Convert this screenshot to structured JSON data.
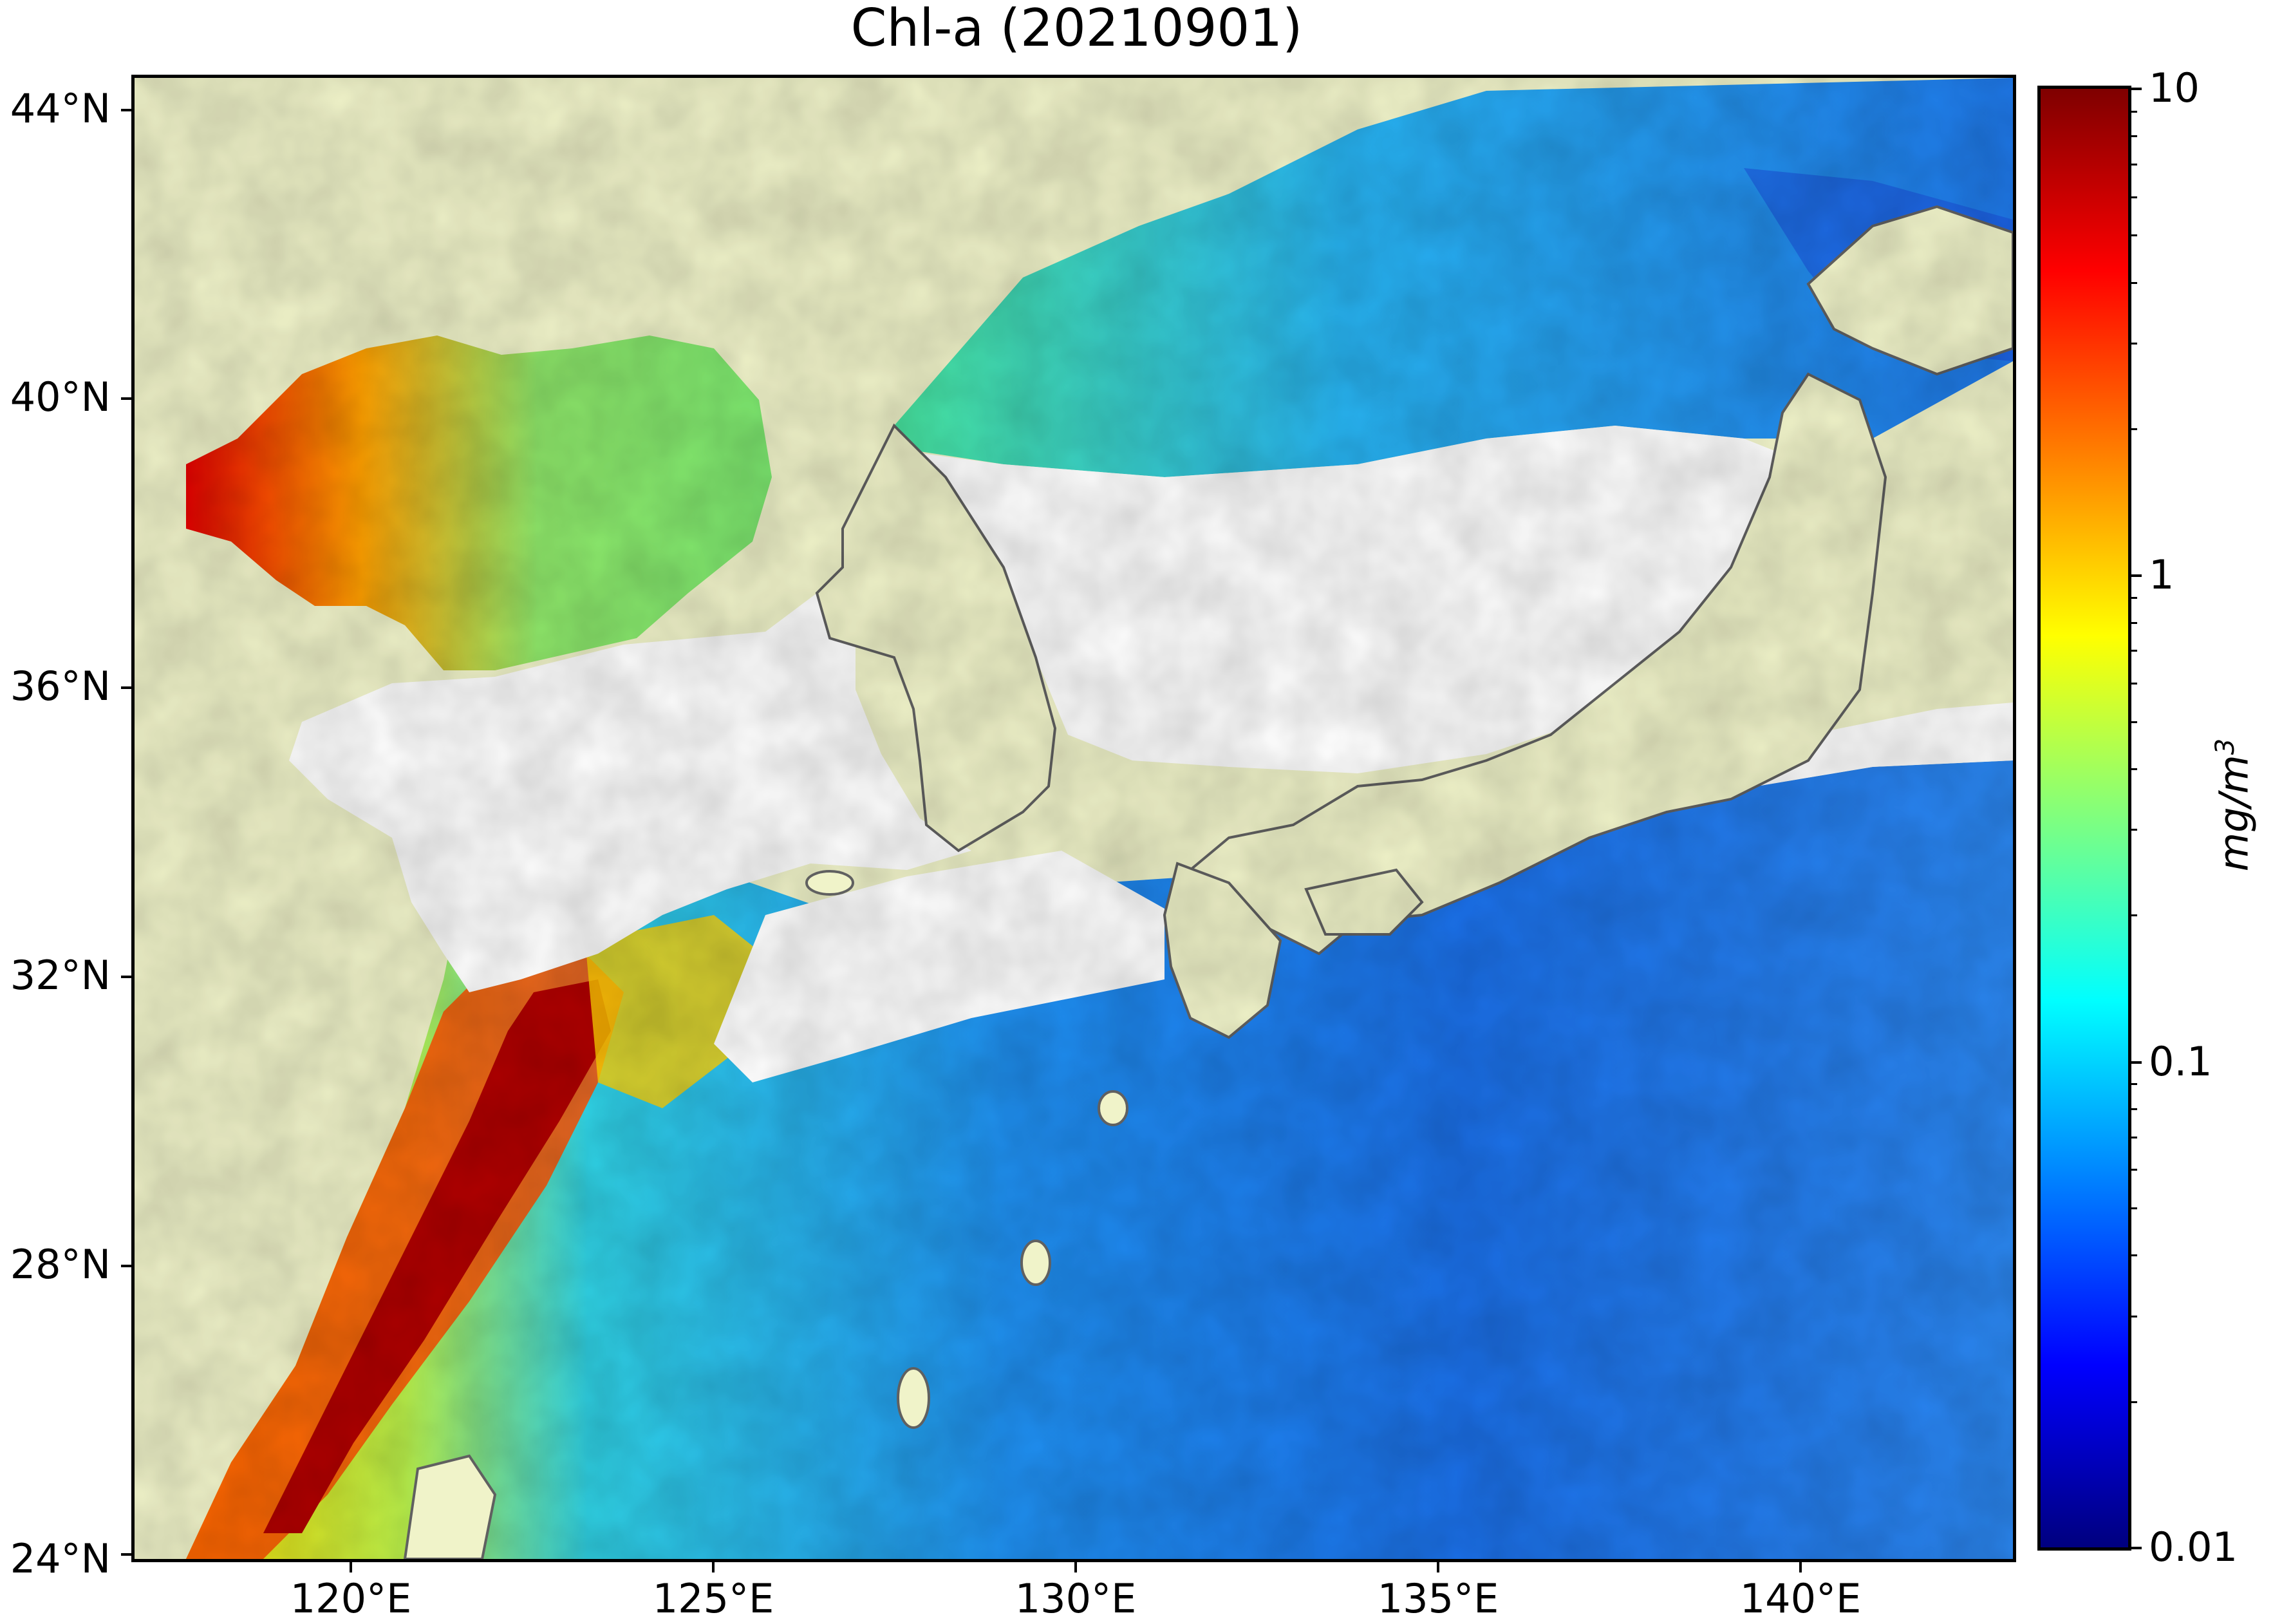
{
  "title": "Chl-a (20210901)",
  "map": {
    "lon_range": [
      117,
      143
    ],
    "lat_range": [
      24,
      44.5
    ],
    "lon_ticks": [
      {
        "value": 120,
        "label": "120°E"
      },
      {
        "value": 125,
        "label": "125°E"
      },
      {
        "value": 130,
        "label": "130°E"
      },
      {
        "value": 135,
        "label": "135°E"
      },
      {
        "value": 140,
        "label": "140°E"
      }
    ],
    "lat_ticks": [
      {
        "value": 24,
        "label": "24°N"
      },
      {
        "value": 28,
        "label": "28°N"
      },
      {
        "value": 32,
        "label": "32°N"
      },
      {
        "value": 36,
        "label": "36°N"
      },
      {
        "value": 40,
        "label": "40°N"
      },
      {
        "value": 44,
        "label": "44°N"
      }
    ],
    "colors": {
      "land": "#f0f3c9",
      "no_data": "#ffffff",
      "coastline": "#606060"
    }
  },
  "colorbar": {
    "scale": "log",
    "range": [
      0.01,
      10
    ],
    "colormap": "jet",
    "ticks": [
      {
        "value": 10,
        "label": "10"
      },
      {
        "value": 1,
        "label": "1"
      },
      {
        "value": 0.1,
        "label": "0.1"
      },
      {
        "value": 0.01,
        "label": "0.01"
      }
    ],
    "unit_base": "mg/m",
    "unit_exp": "3"
  }
}
